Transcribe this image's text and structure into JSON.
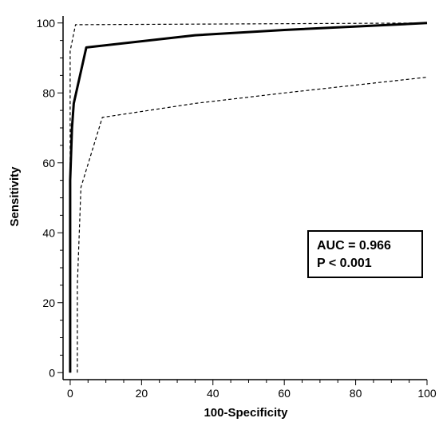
{
  "chart_data": {
    "type": "line",
    "title": "",
    "xlabel": "100-Specificity",
    "ylabel": "Sensitivity",
    "xlim": [
      -2,
      100
    ],
    "ylim": [
      -2,
      102
    ],
    "xticks": [
      0,
      20,
      40,
      60,
      80,
      100
    ],
    "yticks": [
      0,
      20,
      40,
      60,
      80,
      100
    ],
    "grid": false,
    "series": [
      {
        "style": "solid",
        "x": [
          0,
          0,
          0.5,
          1,
          4.5,
          35,
          60,
          100
        ],
        "y": [
          0,
          55,
          70,
          77,
          93,
          96.5,
          98,
          100
        ]
      },
      {
        "style": "dashed",
        "x": [
          0,
          0,
          1.5,
          100
        ],
        "y": [
          0,
          92,
          99.5,
          100
        ]
      },
      {
        "style": "dashed",
        "x": [
          2,
          2,
          3,
          9,
          35,
          60,
          100
        ],
        "y": [
          0,
          25,
          53,
          73,
          77,
          80,
          84.5
        ]
      }
    ],
    "annotations": [
      "AUC = 0.966",
      "P < 0.001"
    ],
    "annotation_placement": "right-center"
  }
}
